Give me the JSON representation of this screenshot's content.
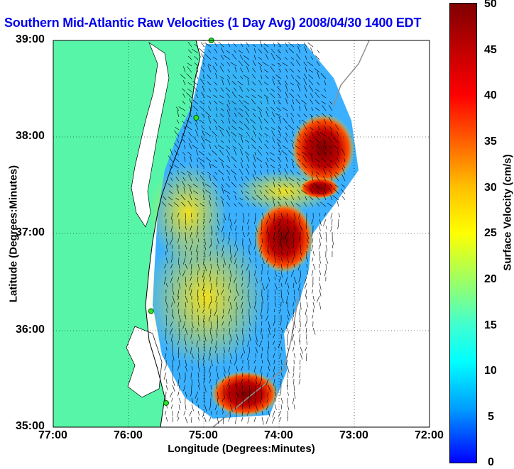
{
  "title": "Southern Mid-Atlantic Raw Velocities (1 Day Avg) 2008/04/30 1400 EDT",
  "axes": {
    "xlabel": "Longitude (Degrees:Minutes)",
    "ylabel": "Latitude (Degrees:Minutes)",
    "x_ticks": [
      "77:00",
      "76:00",
      "75:00",
      "74:00",
      "73:00",
      "72:00"
    ],
    "y_ticks": [
      "39:00",
      "38:00",
      "37:00",
      "36:00",
      "35:00"
    ],
    "xlim": [
      -77,
      -72
    ],
    "ylim": [
      35,
      39
    ]
  },
  "colorbar": {
    "label": "Surface Velocity (cm/s)",
    "ticks": [
      "50",
      "45",
      "40",
      "35",
      "30",
      "25",
      "20",
      "15",
      "10",
      "5",
      "0"
    ],
    "range": [
      0,
      50
    ]
  },
  "colors": {
    "land": "#57f5a8",
    "ocean_slow": "#3ab0ff",
    "ocean_mid": "#d4f030",
    "ocean_fast": "#8b0000",
    "title": "#0000ee"
  },
  "stations": [
    {
      "lon": -74.9,
      "lat": 39.0
    },
    {
      "lon": -75.1,
      "lat": 38.2
    },
    {
      "lon": -75.7,
      "lat": 36.2
    },
    {
      "lon": -75.5,
      "lat": 35.25
    }
  ]
}
